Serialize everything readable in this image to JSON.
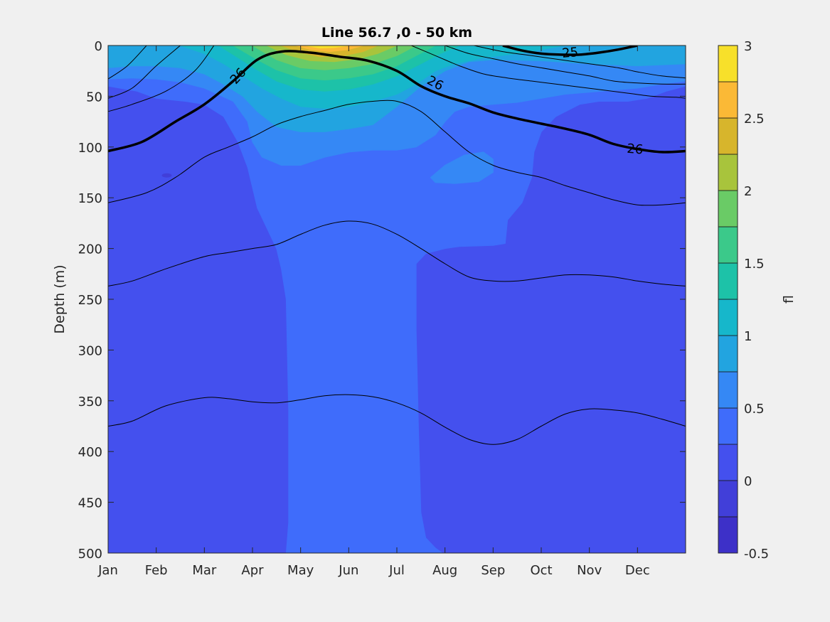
{
  "chart_data": {
    "type": "contour",
    "title": "Line 56.7 ,0 - 50 km",
    "ylabel": "Depth (m)",
    "xlabel": "",
    "x_ticks": [
      "Jan",
      "Feb",
      "Mar",
      "Apr",
      "May",
      "Jun",
      "Jul",
      "Aug",
      "Sep",
      "Oct",
      "Nov",
      "Dec"
    ],
    "xlim": [
      1,
      13
    ],
    "y_ticks": [
      0,
      50,
      100,
      150,
      200,
      250,
      300,
      350,
      400,
      450,
      500
    ],
    "ylim": [
      0,
      500
    ],
    "y_reversed": true,
    "colorbar": {
      "label": "fl",
      "ticks": [
        -0.5,
        0,
        0.5,
        1,
        1.5,
        2,
        2.5,
        3
      ],
      "range": [
        -0.5,
        3
      ],
      "levels": [
        -0.5,
        -0.25,
        0,
        0.25,
        0.5,
        0.75,
        1,
        1.25,
        1.5,
        1.75,
        2,
        2.25,
        2.5,
        2.75,
        3
      ],
      "colors": [
        "#3d30c8",
        "#413fd9",
        "#4450ee",
        "#3f6cfb",
        "#3588f5",
        "#22a4e0",
        "#16b7cb",
        "#1dc2a8",
        "#3bc98a",
        "#6acb66",
        "#a8c43c",
        "#d7b52c",
        "#fbb936",
        "#f7e02a"
      ]
    },
    "filled_regions": [
      {
        "level": 0.25,
        "region": "water column Jan–Dec, 0–500 m (background)"
      },
      {
        "level": 0.5,
        "region": "upper layer Mar–Oct (~0–320 m) and vertical column late Apr–mid Jun to 500 m"
      },
      {
        "level": 0.75,
        "region": "Jan–Jul near-surface (~0–120 m) plus patch in Aug (~110–130 m)"
      },
      {
        "level": 1.0,
        "region": "near-surface Jan–Dec (~0–40 m)"
      },
      {
        "level": 1.25,
        "region": "surface Mar–Aug (~0–30 m)"
      },
      {
        "level": 1.5,
        "region": "surface Mar–Jul (~0–25 m)"
      },
      {
        "level": 1.75,
        "region": "surface Apr–Jul (~0–20 m)"
      },
      {
        "level": 2.0,
        "region": "surface Apr–Jun (~0–15 m)"
      },
      {
        "level": 2.25,
        "region": "surface late Apr–Jun (~0–12 m)"
      },
      {
        "level": 2.5,
        "region": "surface May–Jun (~0–8 m)"
      },
      {
        "level": 2.75,
        "region": "surface May–early Jun (~0–4 m)"
      }
    ],
    "contour_lines": [
      {
        "label": "",
        "bold": false,
        "x": [
          1,
          1.4,
          1.8
        ],
        "y": [
          33,
          20,
          0
        ]
      },
      {
        "label": "",
        "bold": false,
        "x": [
          1,
          1.5,
          2.0,
          2.5
        ],
        "y": [
          52,
          42,
          20,
          0
        ]
      },
      {
        "label": "",
        "bold": false,
        "x": [
          1,
          1.5,
          2.2,
          2.8,
          3.2
        ],
        "y": [
          65,
          58,
          45,
          25,
          0
        ]
      },
      {
        "label": "26",
        "bold": true,
        "x": [
          1,
          1.7,
          2.4,
          3.0,
          3.6,
          4.1,
          4.6,
          5.2,
          5.8,
          6.4,
          7.0,
          7.5,
          8.0,
          8.5,
          9.0,
          9.5,
          10.0,
          10.5,
          11.0,
          11.5,
          12.0,
          12.5,
          13.0
        ],
        "y": [
          104,
          95,
          75,
          58,
          35,
          14,
          6,
          7,
          11,
          15,
          25,
          40,
          50,
          57,
          66,
          72,
          77,
          82,
          88,
          97,
          102,
          105,
          104
        ]
      },
      {
        "label": "",
        "bold": false,
        "x": [
          1,
          1.8,
          2.4,
          3.0,
          3.5,
          4.0,
          4.5,
          5.0,
          5.5,
          6.0,
          6.5,
          7.0,
          7.5,
          8.0,
          8.5,
          9.0,
          9.5,
          10.0,
          10.5,
          11.0,
          11.5,
          12.0,
          12.5,
          13.0
        ],
        "y": [
          155,
          145,
          130,
          110,
          100,
          90,
          78,
          70,
          64,
          58,
          55,
          55,
          65,
          85,
          105,
          118,
          125,
          130,
          138,
          145,
          152,
          157,
          157,
          155
        ]
      },
      {
        "label": "",
        "bold": false,
        "x": [
          1,
          1.5,
          2.2,
          3.0,
          3.5,
          4.0,
          4.5,
          5.0,
          5.5,
          6.0,
          6.5,
          7.0,
          7.5,
          8.0,
          8.5,
          9.0,
          9.5,
          10.0,
          10.5,
          11.0,
          11.5,
          12.0,
          12.5,
          13.0
        ],
        "y": [
          237,
          232,
          220,
          208,
          204,
          200,
          196,
          186,
          177,
          173,
          176,
          186,
          200,
          215,
          228,
          232,
          232,
          229,
          226,
          226,
          228,
          232,
          235,
          237
        ]
      },
      {
        "label": "",
        "bold": false,
        "x": [
          1,
          1.5,
          2.2,
          3.0,
          3.5,
          4.0,
          4.5,
          5.0,
          5.5,
          6.0,
          6.5,
          7.0,
          7.5,
          8.0,
          8.5,
          9.0,
          9.5,
          10.0,
          10.5,
          11.0,
          11.5,
          12.0,
          12.5,
          13.0
        ],
        "y": [
          375,
          370,
          355,
          347,
          348,
          351,
          352,
          349,
          345,
          344,
          346,
          352,
          362,
          376,
          388,
          393,
          388,
          375,
          363,
          358,
          359,
          362,
          368,
          375
        ]
      },
      {
        "label": "",
        "bold": false,
        "x": [
          7.3,
          7.8,
          8.3,
          8.8,
          9.3,
          9.8,
          10.3,
          10.8,
          11.3,
          11.8,
          12.3,
          12.8,
          13.0
        ],
        "y": [
          0,
          10,
          20,
          28,
          32,
          35,
          38,
          41,
          44,
          47,
          50,
          51,
          52
        ]
      },
      {
        "label": "",
        "bold": false,
        "x": [
          8.0,
          8.5,
          9.0,
          9.5,
          10.0,
          10.5,
          11.0,
          11.5,
          12.0,
          12.5,
          13.0
        ],
        "y": [
          0,
          8,
          13,
          18,
          22,
          26,
          30,
          35,
          37,
          38,
          38
        ]
      },
      {
        "label": "",
        "bold": false,
        "x": [
          8.6,
          9.2,
          9.8,
          10.4,
          11.0,
          11.6,
          12.0,
          12.5,
          13.0
        ],
        "y": [
          0,
          6,
          10,
          14,
          18,
          22,
          26,
          30,
          32
        ]
      },
      {
        "label": "25",
        "bold": true,
        "x": [
          9.2,
          9.6,
          10.0,
          10.4,
          10.8,
          11.2,
          11.6,
          12.0
        ],
        "y": [
          0,
          5,
          8,
          9,
          9,
          7,
          4,
          0
        ]
      }
    ]
  }
}
